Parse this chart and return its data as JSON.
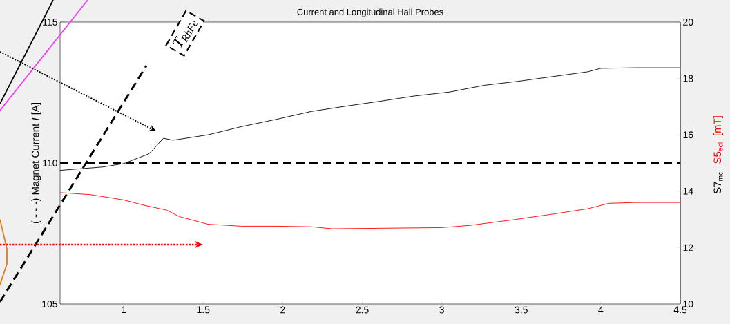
{
  "chart_data": {
    "type": "line",
    "title": "Current and Longitudinal Hall Probes",
    "ylabel": "( - - -) Magnet Current  *I*  [A]",
    "y2label": "[mT]",
    "xlim": [
      0.6,
      4.5
    ],
    "xticks": [
      1,
      1.5,
      2,
      2.5,
      3,
      3.5,
      4,
      4.5
    ],
    "ylim": [
      105,
      115
    ],
    "yticks": [
      105,
      110,
      115
    ],
    "y2lim": [
      10,
      20
    ],
    "y2ticks": [
      10,
      12,
      14,
      16,
      18,
      20
    ],
    "grid": false,
    "marker": "none",
    "annotations": [
      "T$_{RhFe}$"
    ],
    "series": [
      {
        "color": "#000000",
        "axis": "y",
        "line_style": "dashed",
        "x": [
          0.6,
          4.5
        ],
        "values": [
          110,
          110
        ]
      },
      {
        "name": "S7$_{mcl}$",
        "color": "#000000",
        "axis": "y2",
        "line_style": "solid",
        "x": [
          0.6,
          0.87,
          1.0,
          1.16,
          1.25,
          1.31,
          1.53,
          1.74,
          1.96,
          2.18,
          2.4,
          2.61,
          2.83,
          3.05,
          3.27,
          3.48,
          3.7,
          3.92,
          4.0,
          4.22,
          4.5
        ],
        "values": [
          14.74,
          14.86,
          14.98,
          15.33,
          15.88,
          15.81,
          16.0,
          16.29,
          16.55,
          16.83,
          17.02,
          17.19,
          17.38,
          17.52,
          17.76,
          17.9,
          18.07,
          18.24,
          18.36,
          18.38,
          18.38
        ]
      },
      {
        "name": "S5$_{ecl}$",
        "color": "#ff0000",
        "axis": "y2",
        "line_style": "solid",
        "x": [
          0.6,
          0.79,
          1.0,
          1.13,
          1.27,
          1.35,
          1.53,
          1.74,
          1.96,
          2.18,
          2.31,
          2.66,
          3.0,
          3.18,
          3.44,
          3.7,
          3.92,
          4.05,
          4.22,
          4.5
        ],
        "values": [
          13.95,
          13.88,
          13.69,
          13.5,
          13.33,
          13.1,
          12.83,
          12.76,
          12.76,
          12.74,
          12.67,
          12.69,
          12.71,
          12.79,
          12.98,
          13.19,
          13.38,
          13.57,
          13.6,
          13.6
        ]
      }
    ]
  }
}
